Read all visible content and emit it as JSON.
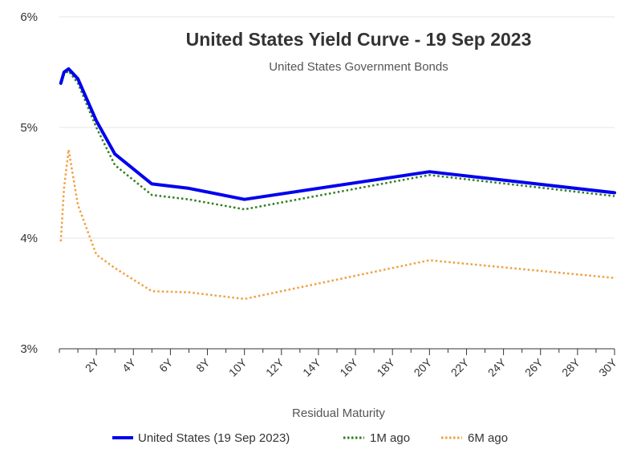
{
  "chart_data": {
    "type": "line",
    "title": "United States Yield Curve - 19 Sep 2023",
    "subtitle": "United States Government Bonds",
    "xlabel": "Residual Maturity",
    "ylabel": "",
    "x_unit": "years",
    "xlim": [
      0,
      30
    ],
    "ylim": [
      3,
      6
    ],
    "y_ticks": [
      "3%",
      "4%",
      "5%",
      "6%"
    ],
    "x_ticks": [
      "2Y",
      "4Y",
      "6Y",
      "8Y",
      "10Y",
      "12Y",
      "14Y",
      "16Y",
      "18Y",
      "20Y",
      "22Y",
      "24Y",
      "26Y",
      "28Y",
      "30Y"
    ],
    "grid": true,
    "legend_position": "bottom",
    "series": [
      {
        "name": "United States (19 Sep 2023)",
        "color": "#0000ee",
        "style": "solid",
        "x": [
          0.08,
          0.25,
          0.5,
          1,
          2,
          3,
          5,
          7,
          10,
          20,
          30
        ],
        "y": [
          5.4,
          5.5,
          5.53,
          5.44,
          5.06,
          4.76,
          4.49,
          4.45,
          4.35,
          4.6,
          4.41
        ]
      },
      {
        "name": "1M ago",
        "color": "#2e7d1e",
        "style": "dotted",
        "x": [
          0.08,
          0.25,
          0.5,
          1,
          2,
          3,
          5,
          7,
          10,
          20,
          30
        ],
        "y": [
          5.39,
          5.48,
          5.51,
          5.4,
          5.0,
          4.66,
          4.39,
          4.35,
          4.26,
          4.57,
          4.38
        ]
      },
      {
        "name": "6M ago",
        "color": "#f0a040",
        "style": "dotted",
        "x": [
          0.08,
          0.25,
          0.5,
          1,
          2,
          3,
          5,
          7,
          10,
          20,
          30
        ],
        "y": [
          3.97,
          4.45,
          4.8,
          4.3,
          3.85,
          3.73,
          3.52,
          3.51,
          3.45,
          3.8,
          3.64
        ]
      }
    ]
  }
}
